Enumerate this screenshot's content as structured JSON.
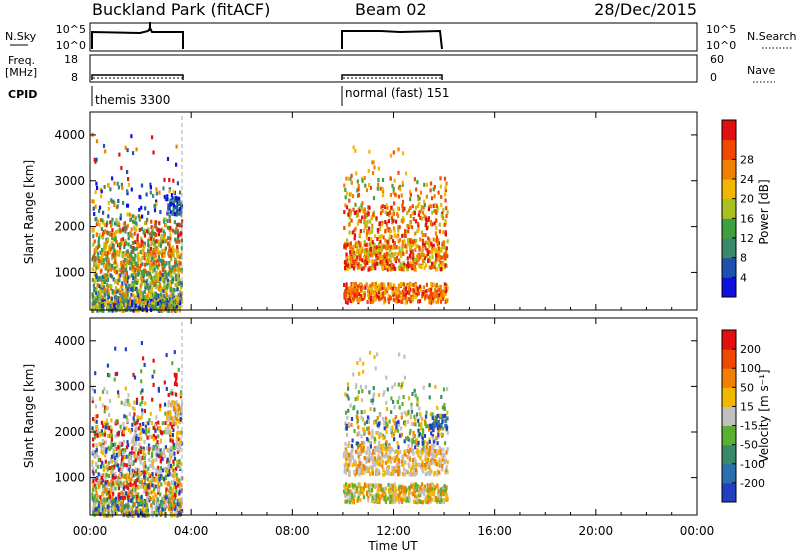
{
  "header": {
    "title": "Buckland Park (fitACF)",
    "beam": "Beam 02",
    "date": "28/Dec/2015"
  },
  "strip_labels": {
    "nsky": "N.Sky",
    "freq_top": "Freq.",
    "freq_unit": "[MHz]",
    "cpid": "CPID",
    "nsearch": "N.Search",
    "nave": "Nave"
  },
  "strip_ticks": {
    "nsky_left": [
      "10^5",
      "10^0"
    ],
    "nsky_right": [
      "10^5",
      "10^0"
    ],
    "freq_left": [
      "18",
      "8"
    ],
    "freq_right": [
      "60",
      "0"
    ]
  },
  "cpid_labels": [
    {
      "text": "themis 3300",
      "start_hour": 0.0
    },
    {
      "text": "normal (fast) 151",
      "start_hour": 10.0
    }
  ],
  "colors": {
    "power_scale": [
      "#1010e0",
      "#2050b0",
      "#3a8a6a",
      "#40a040",
      "#a8c020",
      "#f0b800",
      "#f08000",
      "#f04800",
      "#e01010"
    ],
    "velocity_scale": [
      "#2040c0",
      "#2a6fb0",
      "#3a8a6a",
      "#5ab030",
      "#c0c0c0",
      "#f0b800",
      "#f08000",
      "#f04800",
      "#e01010"
    ]
  },
  "chart_data": [
    {
      "type": "heatmap",
      "panel": "power",
      "xlabel": "",
      "ylabel": "Slant Range [km]",
      "xlim": [
        0,
        24
      ],
      "ylim": [
        180,
        4500
      ],
      "yticks": [
        "1000",
        "2000",
        "3000",
        "4000"
      ],
      "colorbar_label": "Power [dB]",
      "colorbar_ticks": [
        "4",
        "8",
        "12",
        "16",
        "20",
        "24",
        "28"
      ],
      "data_intervals_hours": [
        [
          0.0,
          3.65
        ],
        [
          10.0,
          14.1
        ]
      ]
    },
    {
      "type": "heatmap",
      "panel": "velocity",
      "xlabel": "Time UT",
      "ylabel": "Slant Range [km]",
      "xlim": [
        0,
        24
      ],
      "ylim": [
        180,
        4500
      ],
      "xticks": [
        "00:00",
        "04:00",
        "08:00",
        "12:00",
        "16:00",
        "20:00",
        "00:00"
      ],
      "yticks": [
        "1000",
        "2000",
        "3000",
        "4000"
      ],
      "colorbar_label": "Velocity [m s⁻¹]",
      "colorbar_ticks": [
        "200",
        "100",
        "50",
        "15",
        "-15",
        "-50",
        "-100",
        "-200"
      ],
      "data_intervals_hours": [
        [
          0.0,
          3.65
        ],
        [
          10.0,
          14.1
        ]
      ]
    }
  ]
}
